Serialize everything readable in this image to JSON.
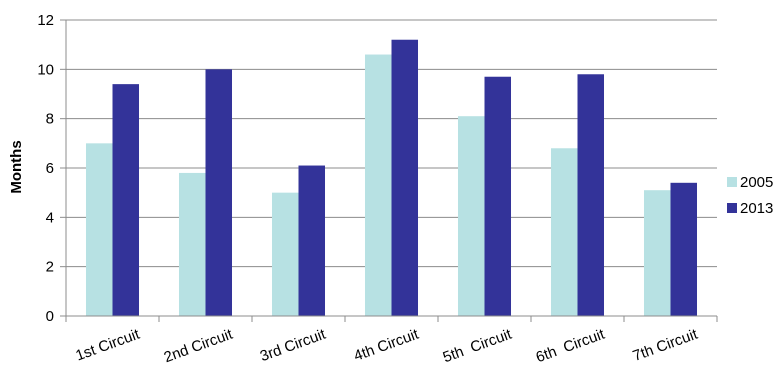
{
  "chart_data": {
    "type": "bar",
    "title": "",
    "xlabel": "",
    "ylabel": "Months",
    "ylim": [
      0,
      12
    ],
    "yticks": [
      0,
      2,
      4,
      6,
      8,
      10,
      12
    ],
    "grid": true,
    "legend_position": "right",
    "categories": [
      "1st Circuit",
      "2nd Circuit",
      "3rd Circuit",
      "4th Circuit",
      "5th  Circuit",
      "6th  Circuit",
      "7th Circuit"
    ],
    "series": [
      {
        "name": "2005",
        "color": "#b7e1e3",
        "values": [
          7.0,
          5.8,
          5.0,
          10.6,
          8.1,
          6.8,
          5.1
        ]
      },
      {
        "name": "2013",
        "color": "#333399",
        "values": [
          9.4,
          10.0,
          6.1,
          11.2,
          9.7,
          9.8,
          5.4
        ]
      }
    ]
  }
}
